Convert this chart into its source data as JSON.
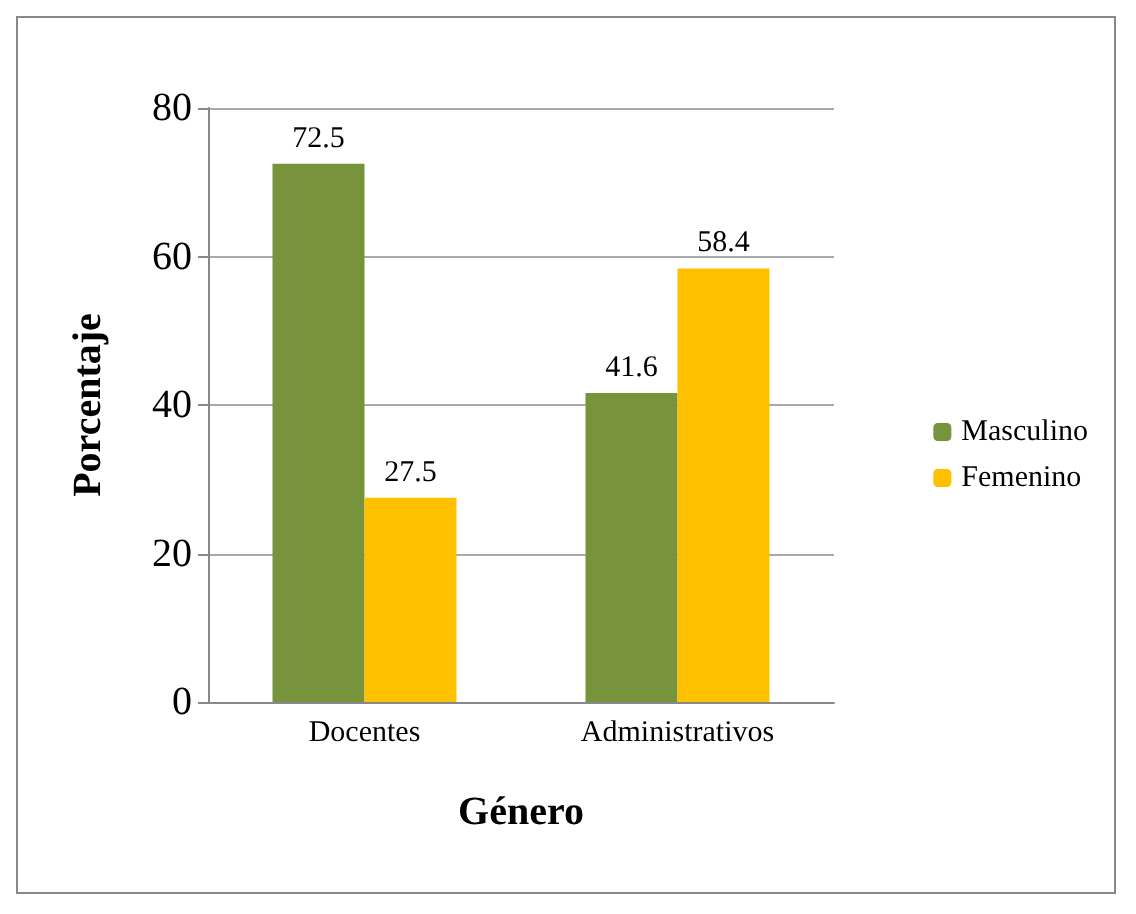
{
  "chart_data": {
    "type": "bar",
    "xlabel": "Género",
    "ylabel": "Porcentaje",
    "categories": [
      "Docentes",
      "Administrativos"
    ],
    "series": [
      {
        "name": "Masculino",
        "color": "#77933c",
        "values": [
          72.5,
          41.6
        ]
      },
      {
        "name": "Femenino",
        "color": "#ffc000",
        "values": [
          27.5,
          58.4
        ]
      }
    ],
    "ylim": [
      0,
      80
    ],
    "yticks": [
      0,
      20,
      40,
      60,
      80
    ],
    "grid": "y",
    "legend": "right",
    "data_labels": true
  }
}
